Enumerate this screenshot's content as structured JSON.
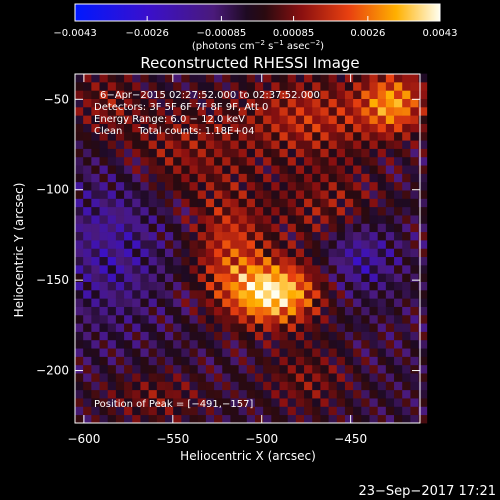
{
  "chart_data": {
    "type": "heatmap",
    "title": "Reconstructed RHESSI Image",
    "xlabel": "Heliocentric X (arcsec)",
    "ylabel": "Heliocentric Y (arcsec)",
    "xlim": [
      -605,
      -411
    ],
    "ylim": [
      -229,
      -36
    ],
    "x_ticks": [
      -600,
      -550,
      -500,
      -450
    ],
    "x_tick_labels": [
      "−600",
      "−550",
      "−500",
      "−450"
    ],
    "y_ticks": [
      -50,
      -100,
      -150,
      -200
    ],
    "y_tick_labels": [
      "−50",
      "−100",
      "−150",
      "−200"
    ],
    "colorbar": {
      "min": -0.0043,
      "max": 0.0043,
      "ticks": [
        -0.0043,
        -0.0026,
        -0.00085,
        0.00085,
        0.0026,
        0.0043
      ],
      "tick_labels": [
        "−0.0043",
        "−0.0026",
        "−0.00085",
        "0.00085",
        "0.0026",
        "0.0043"
      ],
      "label": "(photons cm",
      "label_sup1": "−2",
      "label_mid": " s",
      "label_sup2": "−1",
      "label_mid2": " asec",
      "label_sup3": "−2",
      "label_end": ")"
    },
    "annotations": [
      "6−Apr−2015 02:27:52.000 to 02:37:52.000",
      "Detectors: 3F 5F 6F 7F 8F 9F, Att 0",
      "Energy Range: 6.0 − 12.0 keV",
      "Clean     Total counts: 1.18E+04"
    ],
    "peak_label": "Position of Peak = [−491,−157]",
    "peak": [
      -491,
      -157
    ],
    "sources": [
      {
        "x": -493,
        "y": -157,
        "sx": 17,
        "sy": 12,
        "amp": 0.0043
      },
      {
        "x": -518,
        "y": -132,
        "sx": 14,
        "sy": 22,
        "amp": 0.002
      },
      {
        "x": -462,
        "y": -110,
        "sx": 22,
        "sy": 16,
        "amp": 0.0012
      },
      {
        "x": -426,
        "y": -52,
        "sx": 13,
        "sy": 12,
        "amp": 0.003
      },
      {
        "x": -474,
        "y": -60,
        "sx": 28,
        "sy": 16,
        "amp": 0.0018
      },
      {
        "x": -545,
        "y": -78,
        "sx": 25,
        "sy": 18,
        "amp": 0.0012
      },
      {
        "x": -588,
        "y": -52,
        "sx": 14,
        "sy": 14,
        "amp": 0.0011
      },
      {
        "x": -560,
        "y": -215,
        "sx": 22,
        "sy": 10,
        "amp": 0.001
      },
      {
        "x": -475,
        "y": -205,
        "sx": 18,
        "sy": 14,
        "amp": 0.001
      },
      {
        "x": -445,
        "y": -135,
        "sx": 14,
        "sy": 14,
        "amp": -0.0015
      },
      {
        "x": -585,
        "y": -130,
        "sx": 20,
        "sy": 30,
        "amp": -0.0012
      }
    ]
  },
  "timestamp": "23−Sep−2017 17:21"
}
